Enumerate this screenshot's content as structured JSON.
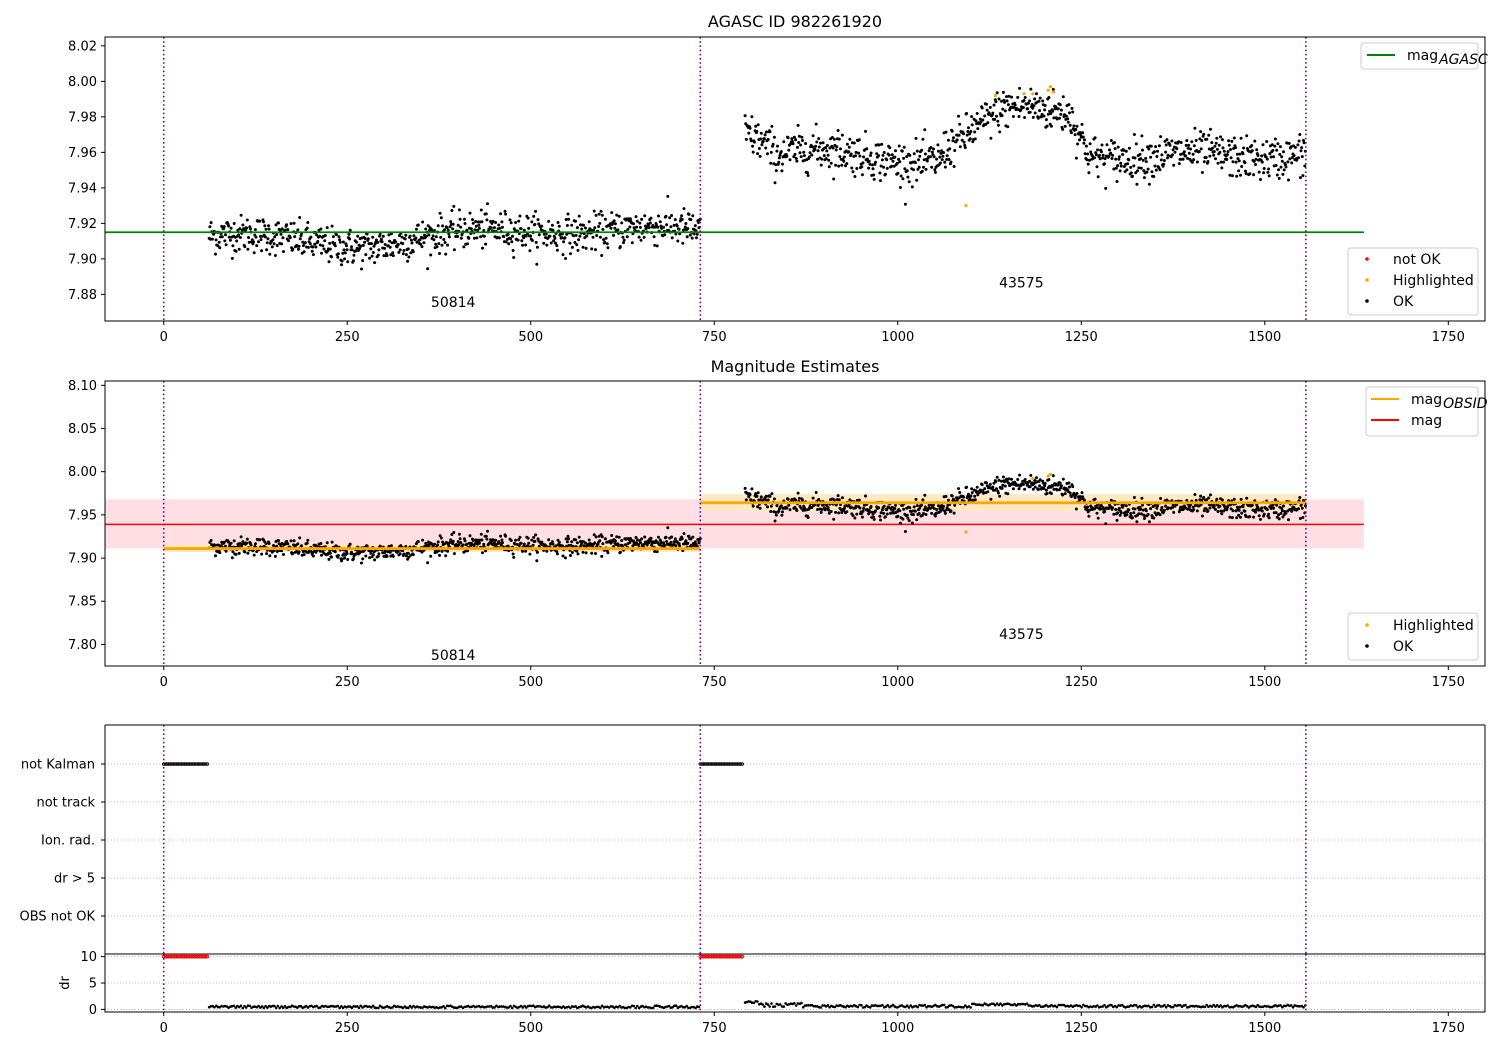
{
  "colors": {
    "ok": "#000000",
    "highlighted": "#ffa500",
    "not_ok": "#ff0000",
    "agasc_line": "#008000",
    "obsid_line": "#ffa500",
    "mag_line": "#ff0000",
    "mag_band": "#ffdfe3",
    "obsid_band": "#ffe9c4",
    "vline": "#800080"
  },
  "chart_data": [
    {
      "id": "agasc",
      "type": "scatter",
      "title": "AGASC ID 982261920",
      "xlim": [
        -80,
        1800
      ],
      "ylim": [
        7.865,
        8.025
      ],
      "xticks": [
        0,
        250,
        500,
        750,
        1000,
        1250,
        1500,
        1750
      ],
      "yticks": [
        7.88,
        7.9,
        7.92,
        7.94,
        7.96,
        7.98,
        8.0,
        8.02
      ],
      "vlines": [
        0,
        731,
        1556
      ],
      "obsid_labels": [
        {
          "x": 364,
          "y": 7.873,
          "text": "50814"
        },
        {
          "x": 1138,
          "y": 7.884,
          "text": "43575"
        }
      ],
      "hlines": [
        {
          "y": 7.915,
          "x": [
            -80,
            1635
          ],
          "name": "mag_AGASC"
        }
      ],
      "legend_upper": [
        {
          "label": "mag",
          "sub": "AGASC",
          "kind": "line",
          "color": "agasc_line"
        }
      ],
      "legend_lower": [
        {
          "label": "not OK",
          "kind": "dot",
          "color": "not_ok"
        },
        {
          "label": "Highlighted",
          "kind": "dot",
          "color": "highlighted"
        },
        {
          "label": "OK",
          "kind": "dot",
          "color": "ok"
        }
      ],
      "highlighted_points": [
        [
          1093,
          7.93
        ],
        [
          1133,
          7.992
        ],
        [
          1172,
          7.993
        ],
        [
          1184,
          7.993
        ],
        [
          1205,
          7.995
        ],
        [
          1208,
          7.997
        ],
        [
          1212,
          7.994
        ]
      ]
    },
    {
      "id": "estimates",
      "type": "scatter",
      "title": "Magnitude Estimates",
      "xlim": [
        -80,
        1800
      ],
      "ylim": [
        7.775,
        8.105
      ],
      "xticks": [
        0,
        250,
        500,
        750,
        1000,
        1250,
        1500,
        1750
      ],
      "yticks": [
        7.8,
        7.85,
        7.9,
        7.95,
        8.0,
        8.05,
        8.1
      ],
      "vlines": [
        0,
        731,
        1556
      ],
      "obsid_labels": [
        {
          "x": 364,
          "y": 7.782,
          "text": "50814"
        },
        {
          "x": 1138,
          "y": 7.806,
          "text": "43575"
        }
      ],
      "mag": {
        "value": 7.939,
        "band": [
          7.911,
          7.968
        ],
        "x": [
          -80,
          1635
        ]
      },
      "obsid_mags": [
        {
          "x": [
            0,
            731
          ],
          "value": 7.911,
          "band": [
            7.907,
            7.916
          ]
        },
        {
          "x": [
            731,
            1556
          ],
          "value": 7.964,
          "band": [
            7.954,
            7.974
          ]
        }
      ],
      "legend_upper": [
        {
          "label": "mag",
          "sub": "OBSID",
          "kind": "line",
          "color": "obsid_line"
        },
        {
          "label": "mag",
          "sub": "",
          "kind": "line",
          "color": "mag_line"
        }
      ],
      "legend_lower": [
        {
          "label": "Highlighted",
          "kind": "dot",
          "color": "highlighted"
        },
        {
          "label": "OK",
          "kind": "dot",
          "color": "ok"
        }
      ],
      "highlighted_points": [
        [
          1093,
          7.93
        ],
        [
          1184,
          7.992
        ],
        [
          1205,
          7.995
        ],
        [
          1208,
          7.997
        ]
      ]
    },
    {
      "id": "flags",
      "type": "scatter",
      "categories": [
        "not Kalman",
        "not track",
        "Ion. rad.",
        "dr > 5",
        "OBS not OK"
      ],
      "xlim": [
        -80,
        1800
      ],
      "xticks": [
        0,
        250,
        500,
        750,
        1000,
        1250,
        1500,
        1750
      ],
      "vlines": [
        0,
        731,
        1556
      ],
      "not_kalman_ranges": [
        [
          0,
          60
        ],
        [
          731,
          790
        ]
      ]
    },
    {
      "id": "dr",
      "type": "scatter",
      "ylabel": "dr",
      "xlim": [
        -80,
        1800
      ],
      "ylim": [
        -0.5,
        10.5
      ],
      "yticks": [
        0,
        5,
        10
      ],
      "xticks": [
        0,
        250,
        500,
        750,
        1000,
        1250,
        1500,
        1750
      ],
      "vlines": [
        0,
        731,
        1556
      ],
      "clipped_ranges": [
        [
          0,
          60
        ],
        [
          731,
          790
        ]
      ],
      "clip_value": 10
    }
  ]
}
